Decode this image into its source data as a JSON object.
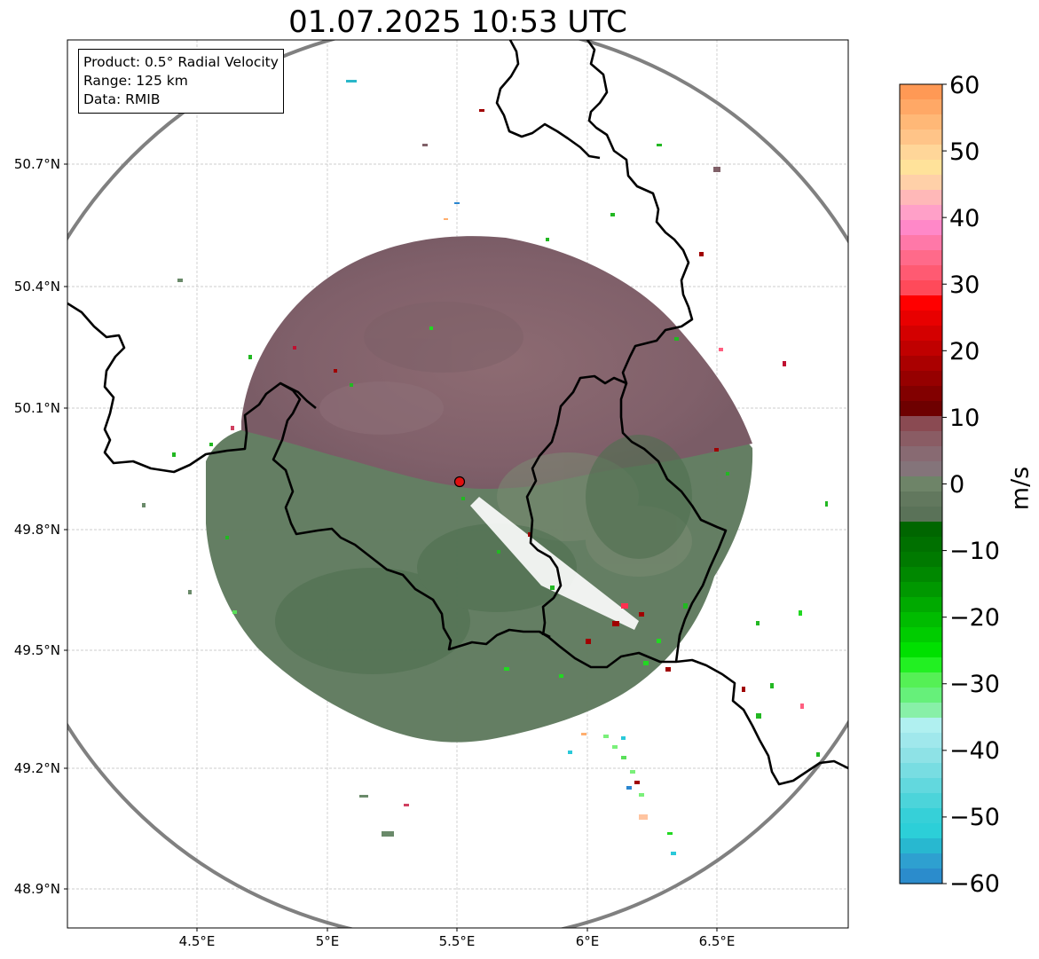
{
  "title": "01.07.2025 10:53 UTC",
  "info": {
    "product": "Product: 0.5° Radial Velocity",
    "range": "Range: 125 km",
    "data": "Data: RMIB"
  },
  "lat_ticks": [
    "50.7°N",
    "50.4°N",
    "50.1°N",
    "49.8°N",
    "49.5°N",
    "49.2°N",
    "48.9°N"
  ],
  "lon_ticks": [
    "4.5°E",
    "5°E",
    "5.5°E",
    "6°E",
    "6.5°E"
  ],
  "colorbar": {
    "unit": "m/s",
    "min": -60,
    "max": 60,
    "ticks": [
      "60",
      "50",
      "40",
      "30",
      "20",
      "10",
      "0",
      "−10",
      "−20",
      "−30",
      "−40",
      "−50",
      "−60"
    ]
  },
  "radar": {
    "lon": 5.5,
    "lat": 49.914,
    "range_km": 125
  }
}
